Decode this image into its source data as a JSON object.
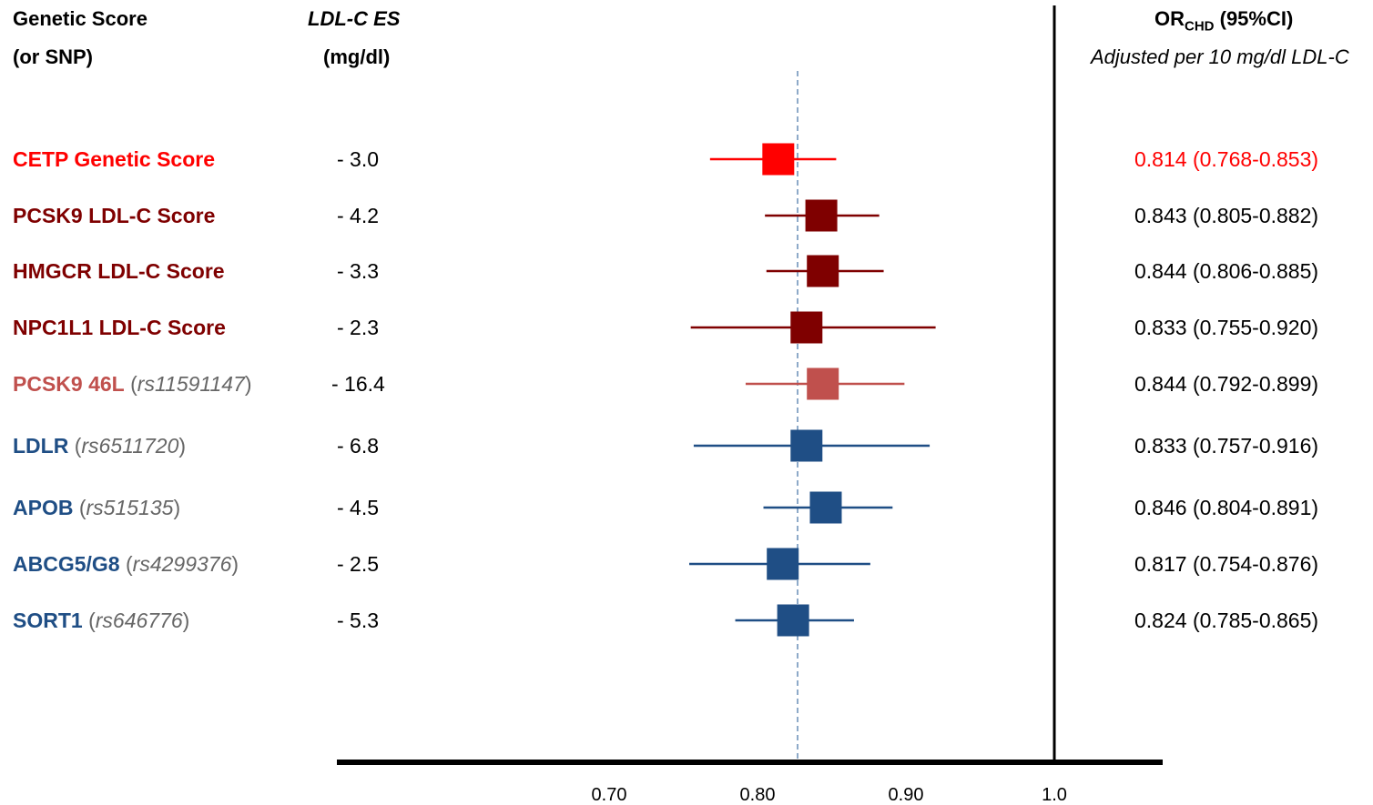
{
  "header": {
    "col1_line1": "Genetic Score",
    "col1_line2": "(or SNP)",
    "col2_line1": "LDL-C  ES",
    "col2_line2": "(mg/dl)",
    "col3_or": "OR",
    "col3_sub": "CHD",
    "col3_rest": " (95%CI)",
    "col3_note": "Adjusted per 10 mg/dl LDL-C"
  },
  "colors": {
    "red": "#ff0000",
    "dark_red": "#7f0000",
    "light_red": "#c0504d",
    "blue": "#1f4e85",
    "ref_line": "#8ea9c9"
  },
  "chart_data": {
    "type": "forest",
    "xlim": [
      0.627,
      1.07
    ],
    "x_ticks": [
      "0.70",
      "0.80",
      "0.90",
      "1.0"
    ],
    "x_tick_values": [
      0.7,
      0.8,
      0.9,
      1.0
    ],
    "reference_line": 1.0,
    "pooled_estimate_line": 0.827,
    "rows": [
      {
        "name": "CETP Genetic Score",
        "snp": "",
        "es": "- 3.0",
        "or": 0.814,
        "lo": 0.768,
        "hi": 0.853,
        "ci_text": "0.814 (0.768-0.853)",
        "color": "#ff0000",
        "ci_color": "#ff0000"
      },
      {
        "name": "PCSK9 LDL-C Score",
        "snp": "",
        "es": "- 4.2",
        "or": 0.843,
        "lo": 0.805,
        "hi": 0.882,
        "ci_text": "0.843 (0.805-0.882)",
        "color": "#7f0000",
        "ci_color": "#000000"
      },
      {
        "name": "HMGCR LDL-C Score",
        "snp": "",
        "es": "- 3.3",
        "or": 0.844,
        "lo": 0.806,
        "hi": 0.885,
        "ci_text": "0.844 (0.806-0.885)",
        "color": "#7f0000",
        "ci_color": "#000000"
      },
      {
        "name": "NPC1L1 LDL-C Score",
        "snp": "",
        "es": "- 2.3",
        "or": 0.833,
        "lo": 0.755,
        "hi": 0.92,
        "ci_text": "0.833 (0.755-0.920)",
        "color": "#7f0000",
        "ci_color": "#000000"
      },
      {
        "name": "PCSK9 46L",
        "snp": "rs11591147",
        "es": "- 16.4",
        "or": 0.844,
        "lo": 0.792,
        "hi": 0.899,
        "ci_text": "0.844 (0.792-0.899)",
        "color": "#c0504d",
        "ci_color": "#000000"
      },
      {
        "name": "LDLR",
        "snp": "rs6511720",
        "es": "- 6.8",
        "or": 0.833,
        "lo": 0.757,
        "hi": 0.916,
        "ci_text": "0.833 (0.757-0.916)",
        "color": "#1f4e85",
        "ci_color": "#000000"
      },
      {
        "name": "APOB",
        "snp": "rs515135",
        "es": "- 4.5",
        "or": 0.846,
        "lo": 0.804,
        "hi": 0.891,
        "ci_text": "0.846 (0.804-0.891)",
        "color": "#1f4e85",
        "ci_color": "#000000"
      },
      {
        "name": "ABCG5/G8",
        "snp": "rs4299376",
        "es": "- 2.5",
        "or": 0.817,
        "lo": 0.754,
        "hi": 0.876,
        "ci_text": "0.817 (0.754-0.876)",
        "color": "#1f4e85",
        "ci_color": "#000000"
      },
      {
        "name": "SORT1",
        "snp": "rs646776",
        "es": "- 5.3",
        "or": 0.824,
        "lo": 0.785,
        "hi": 0.865,
        "ci_text": "0.824 (0.785-0.865)",
        "color": "#1f4e85",
        "ci_color": "#000000"
      }
    ]
  }
}
